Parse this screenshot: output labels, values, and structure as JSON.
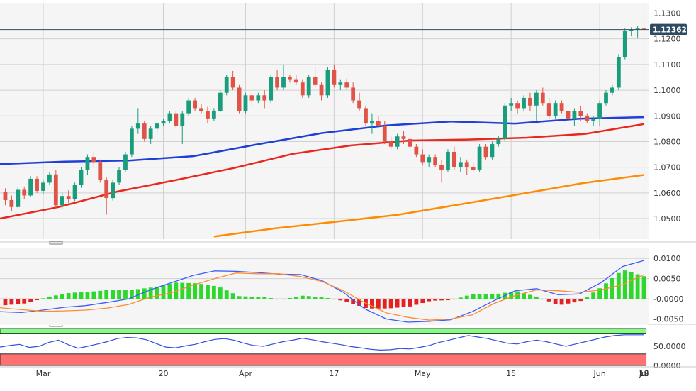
{
  "chart_data": {
    "type": "candlestick",
    "instrument_last_price_label": "1.123620",
    "main_panel": {
      "price_axis_ticks": [
        "1.1300",
        "1.1200",
        "1.1100",
        "1.1000",
        "1.0900",
        "1.0800",
        "1.0700",
        "1.0600",
        "1.0500"
      ],
      "ylim": [
        1.042,
        1.134
      ],
      "last_price": 1.12362,
      "candles": [
        [
          1.0605,
          1.0618,
          1.0552,
          1.0572
        ],
        [
          1.0572,
          1.059,
          1.053,
          1.0545
        ],
        [
          1.0545,
          1.0625,
          1.054,
          1.0612
        ],
        [
          1.0612,
          1.0625,
          1.0575,
          1.059
        ],
        [
          1.059,
          1.0665,
          1.0585,
          1.0655
        ],
        [
          1.0655,
          1.0665,
          1.06,
          1.0608
        ],
        [
          1.0608,
          1.065,
          1.0595,
          1.064
        ],
        [
          1.064,
          1.068,
          1.063,
          1.0672
        ],
        [
          1.0672,
          1.069,
          1.054,
          1.0552
        ],
        [
          1.0552,
          1.06,
          1.0538,
          1.0588
        ],
        [
          1.0588,
          1.061,
          1.056,
          1.0575
        ],
        [
          1.0575,
          1.064,
          1.0568,
          1.063
        ],
        [
          1.063,
          1.07,
          1.062,
          1.069
        ],
        [
          1.069,
          1.075,
          1.067,
          1.074
        ],
        [
          1.074,
          1.076,
          1.07,
          1.072
        ],
        [
          1.072,
          1.073,
          1.064,
          1.065
        ],
        [
          1.065,
          1.066,
          1.0515,
          1.058
        ],
        [
          1.058,
          1.065,
          1.057,
          1.064
        ],
        [
          1.064,
          1.07,
          1.063,
          1.069
        ],
        [
          1.069,
          1.076,
          1.068,
          1.075
        ],
        [
          1.075,
          1.086,
          1.074,
          1.085
        ],
        [
          1.085,
          1.093,
          1.083,
          1.087
        ],
        [
          1.087,
          1.088,
          1.08,
          1.081
        ],
        [
          1.081,
          1.086,
          1.079,
          1.085
        ],
        [
          1.085,
          1.088,
          1.083,
          1.087
        ],
        [
          1.087,
          1.089,
          1.086,
          1.088
        ],
        [
          1.088,
          1.092,
          1.087,
          1.091
        ],
        [
          1.091,
          1.092,
          1.085,
          1.086
        ],
        [
          1.086,
          1.092,
          1.079,
          1.091
        ],
        [
          1.091,
          1.097,
          1.09,
          1.096
        ],
        [
          1.096,
          1.097,
          1.092,
          1.093
        ],
        [
          1.093,
          1.0945,
          1.091,
          1.092
        ],
        [
          1.092,
          1.0935,
          1.087,
          1.089
        ],
        [
          1.089,
          1.093,
          1.088,
          1.092
        ],
        [
          1.092,
          1.1,
          1.0915,
          1.099
        ],
        [
          1.099,
          1.106,
          1.098,
          1.105
        ],
        [
          1.105,
          1.1075,
          1.1,
          1.101
        ],
        [
          1.101,
          1.102,
          1.091,
          1.092
        ],
        [
          1.092,
          1.099,
          1.091,
          1.098
        ],
        [
          1.098,
          1.099,
          1.094,
          1.096
        ],
        [
          1.096,
          1.099,
          1.095,
          1.098
        ],
        [
          1.098,
          1.1,
          1.093,
          1.096
        ],
        [
          1.096,
          1.106,
          1.095,
          1.105
        ],
        [
          1.105,
          1.108,
          1.1,
          1.101
        ],
        [
          1.101,
          1.11,
          1.1,
          1.105
        ],
        [
          1.105,
          1.106,
          1.103,
          1.104
        ],
        [
          1.104,
          1.106,
          1.102,
          1.103
        ],
        [
          1.103,
          1.104,
          1.097,
          1.098
        ],
        [
          1.098,
          1.106,
          1.097,
          1.105
        ],
        [
          1.105,
          1.109,
          1.101,
          1.102
        ],
        [
          1.102,
          1.103,
          1.096,
          1.098
        ],
        [
          1.098,
          1.109,
          1.097,
          1.108
        ],
        [
          1.108,
          1.11,
          1.101,
          1.102
        ],
        [
          1.102,
          1.104,
          1.1,
          1.103
        ],
        [
          1.103,
          1.1045,
          1.1,
          1.101
        ],
        [
          1.101,
          1.103,
          1.095,
          1.096
        ],
        [
          1.096,
          1.099,
          1.092,
          1.093
        ],
        [
          1.093,
          1.094,
          1.086,
          1.087
        ],
        [
          1.087,
          1.091,
          1.083,
          1.088
        ],
        [
          1.088,
          1.09,
          1.085,
          1.086
        ],
        [
          1.086,
          1.088,
          1.079,
          1.08
        ],
        [
          1.08,
          1.082,
          1.077,
          1.078
        ],
        [
          1.078,
          1.083,
          1.077,
          1.082
        ],
        [
          1.082,
          1.084,
          1.079,
          1.081
        ],
        [
          1.081,
          1.082,
          1.077,
          1.078
        ],
        [
          1.078,
          1.079,
          1.074,
          1.075
        ],
        [
          1.075,
          1.077,
          1.071,
          1.072
        ],
        [
          1.072,
          1.075,
          1.07,
          1.074
        ],
        [
          1.074,
          1.075,
          1.07,
          1.071
        ],
        [
          1.071,
          1.073,
          1.064,
          1.069
        ],
        [
          1.069,
          1.077,
          1.068,
          1.076
        ],
        [
          1.076,
          1.078,
          1.069,
          1.07
        ],
        [
          1.07,
          1.074,
          1.068,
          1.072
        ],
        [
          1.072,
          1.073,
          1.067,
          1.07
        ],
        [
          1.07,
          1.072,
          1.068,
          1.069
        ],
        [
          1.069,
          1.079,
          1.068,
          1.078
        ],
        [
          1.078,
          1.079,
          1.073,
          1.074
        ],
        [
          1.074,
          1.08,
          1.073,
          1.079
        ],
        [
          1.079,
          1.082,
          1.078,
          1.081
        ],
        [
          1.081,
          1.095,
          1.08,
          1.094
        ],
        [
          1.094,
          1.097,
          1.092,
          1.095
        ],
        [
          1.095,
          1.096,
          1.091,
          1.093
        ],
        [
          1.093,
          1.098,
          1.092,
          1.097
        ],
        [
          1.097,
          1.099,
          1.092,
          1.094
        ],
        [
          1.094,
          1.1,
          1.088,
          1.099
        ],
        [
          1.099,
          1.101,
          1.094,
          1.095
        ],
        [
          1.095,
          1.097,
          1.089,
          1.09
        ],
        [
          1.09,
          1.096,
          1.089,
          1.095
        ],
        [
          1.095,
          1.096,
          1.091,
          1.092
        ],
        [
          1.092,
          1.094,
          1.088,
          1.089
        ],
        [
          1.089,
          1.093,
          1.086,
          1.092
        ],
        [
          1.092,
          1.094,
          1.088,
          1.09
        ],
        [
          1.09,
          1.091,
          1.087,
          1.088
        ],
        [
          1.088,
          1.09,
          1.086,
          1.089
        ],
        [
          1.089,
          1.096,
          1.086,
          1.095
        ],
        [
          1.095,
          1.1,
          1.094,
          1.099
        ],
        [
          1.099,
          1.102,
          1.098,
          1.101
        ],
        [
          1.101,
          1.114,
          1.1,
          1.113
        ],
        [
          1.113,
          1.124,
          1.112,
          1.123
        ],
        [
          1.123,
          1.1245,
          1.121,
          1.1235
        ],
        [
          1.1235,
          1.125,
          1.1205,
          1.124
        ],
        [
          1.124,
          1.127,
          1.1225,
          1.12362
        ]
      ],
      "moving_averages": [
        {
          "color": "#1f3fd6",
          "values": [
            1.0712,
            1.0722,
            1.0726,
            1.0743,
            1.0789,
            1.0833,
            1.0863,
            1.0878,
            1.087,
            1.0889,
            1.0895
          ]
        },
        {
          "color": "#e8281e",
          "values": [
            1.05,
            1.0545,
            1.0605,
            1.065,
            1.0697,
            1.0752,
            1.0785,
            1.0804,
            1.0808,
            1.0815,
            1.083,
            1.0868
          ]
        },
        {
          "color": "#ff8c00",
          "values": [
            1.043,
            1.0462,
            1.0488,
            1.0515,
            1.0555,
            1.0596,
            1.0638,
            1.067
          ]
        }
      ]
    },
    "macd_panel": {
      "axis_ticks": [
        "0.0100",
        "0.0050",
        "-0.0000",
        "-0.0050"
      ],
      "ylim": [
        -0.0065,
        0.0125
      ],
      "macd_line": [
        -0.0032,
        -0.0034,
        -0.0028,
        -0.0021,
        -0.0017,
        -0.0009,
        0.0,
        0.0022,
        0.004,
        0.0058,
        0.0069,
        0.0068,
        0.0065,
        0.0061,
        0.006,
        0.0045,
        0.0016,
        -0.0025,
        -0.005,
        -0.0058,
        -0.0056,
        -0.0052,
        -0.0032,
        -0.0005,
        0.002,
        0.0025,
        0.001,
        0.0012,
        0.004,
        0.008,
        0.0095
      ],
      "signal_line": [
        -0.0022,
        -0.0027,
        -0.0031,
        -0.003,
        -0.0028,
        -0.0023,
        -0.0014,
        0.0004,
        0.0015,
        0.0034,
        0.005,
        0.0064,
        0.0062,
        0.0062,
        0.0055,
        0.0043,
        0.002,
        -0.001,
        -0.0035,
        -0.0046,
        -0.0053,
        -0.005,
        -0.004,
        -0.0012,
        0.0008,
        0.0022,
        0.002,
        0.0016,
        0.0022,
        0.0035,
        0.006
      ],
      "histogram_colors": {
        "positive": "#2bd82b",
        "negative": "#e62020"
      }
    },
    "rsi_panel": {
      "axis_ticks": [
        "50.0000",
        "0.0000"
      ],
      "ylim": [
        0,
        100
      ],
      "line_values": [
        48,
        52,
        55,
        47,
        50,
        60,
        66,
        54,
        45,
        50,
        56,
        62,
        70,
        73,
        72,
        67,
        57,
        48,
        46,
        51,
        55,
        62,
        68,
        70,
        66,
        58,
        52,
        50,
        56,
        62,
        66,
        71,
        67,
        62,
        58,
        54,
        49,
        46,
        42,
        40,
        41,
        44,
        43,
        47,
        52,
        60,
        66,
        72,
        78,
        74,
        70,
        64,
        58,
        56,
        62,
        66,
        62,
        56,
        50,
        56,
        62,
        68,
        74,
        78,
        80,
        80,
        80
      ],
      "overbought_zone_color": "#80ff80",
      "oversold_zone_color": "#ff7070"
    },
    "x_tick_labels": [
      {
        "label": "Mar",
        "index": 6
      },
      {
        "label": "20",
        "index": 25
      },
      {
        "label": "Apr",
        "index": 38
      },
      {
        "label": "17",
        "index": 52
      },
      {
        "label": "May",
        "index": 66
      },
      {
        "label": "15",
        "index": 80
      },
      {
        "label": "Jun",
        "index": 94
      },
      {
        "label": "19",
        "index": 108
      },
      {
        "label": "Jul",
        "index": 122
      },
      {
        "label": "18",
        "index": 137
      }
    ],
    "colors": {
      "up_candle": "#1a9d7c",
      "down_candle": "#e05448",
      "grid": "#d0d0d0",
      "background": "#f5f5f5",
      "last_price_line": "#2f4b63",
      "macd_line": "#3a5cff",
      "signal_line": "#ff8c30",
      "rsi_line": "#2f4fe0"
    }
  }
}
